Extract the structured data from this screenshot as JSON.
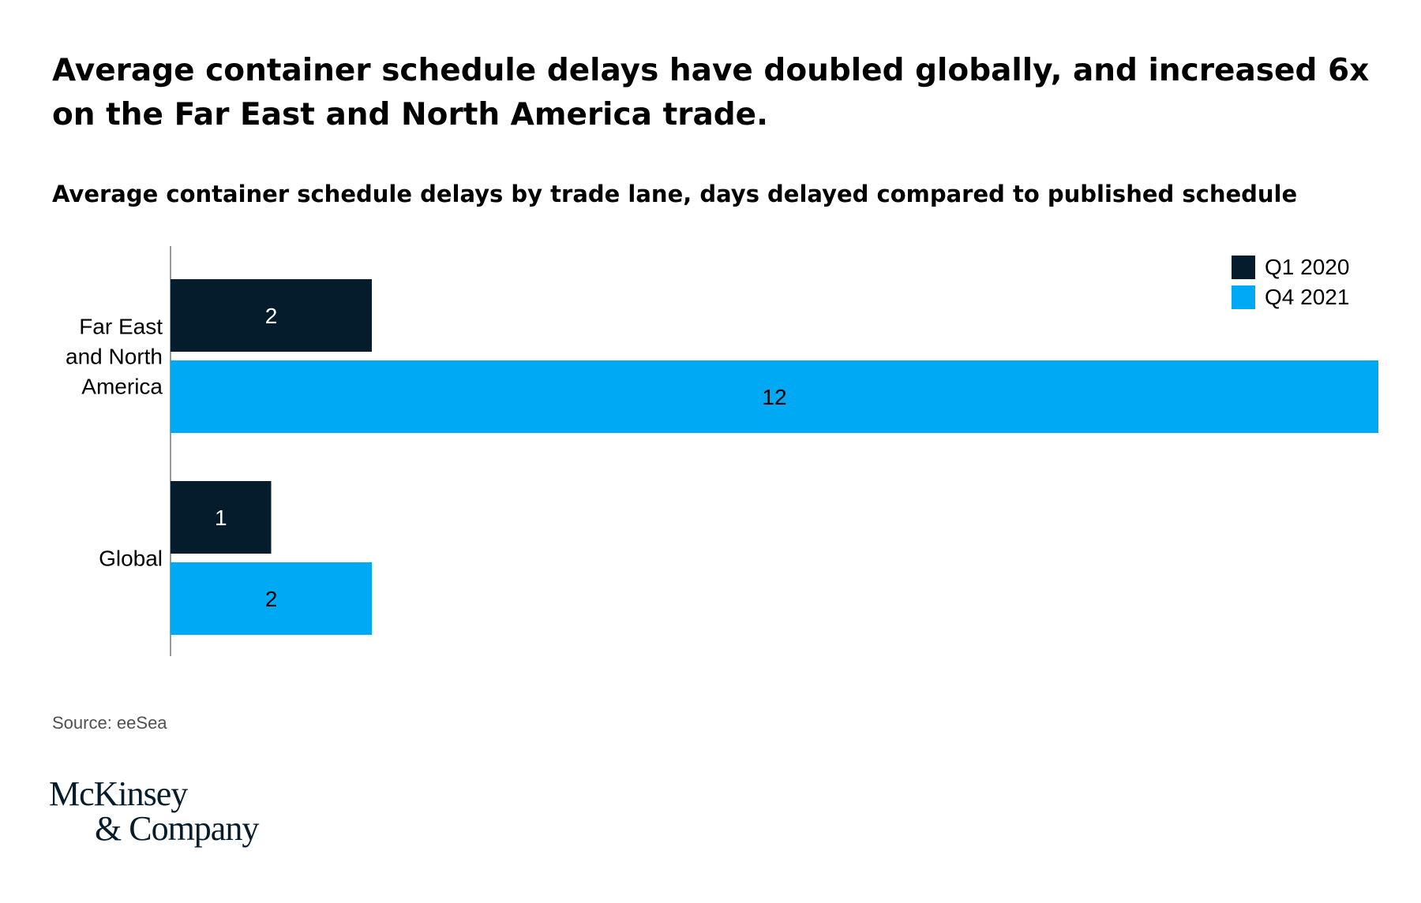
{
  "title": "Average container schedule delays have doubled globally, and increased 6x on the Far East and North America trade.",
  "subtitle": "Average container schedule delays by trade lane, days delayed compared to published schedule",
  "source": "Source: eeSea",
  "logo": {
    "line1": "McKinsey",
    "line2": "& Company"
  },
  "colors": {
    "q1_2020": "#051c2c",
    "q4_2021": "#00a9f4"
  },
  "chart_data": {
    "type": "bar",
    "orientation": "horizontal",
    "categories": [
      [
        "Far East",
        "and North",
        "America"
      ],
      [
        "Global"
      ]
    ],
    "series": [
      {
        "name": "Q1 2020",
        "values": [
          2,
          1
        ],
        "color": "#051c2c",
        "label_color": "#ffffff"
      },
      {
        "name": "Q4 2021",
        "values": [
          12,
          2
        ],
        "color": "#00a9f4",
        "label_color": "#000000"
      }
    ],
    "xlim": [
      0,
      12
    ],
    "grid": false,
    "legend": "top-right"
  }
}
